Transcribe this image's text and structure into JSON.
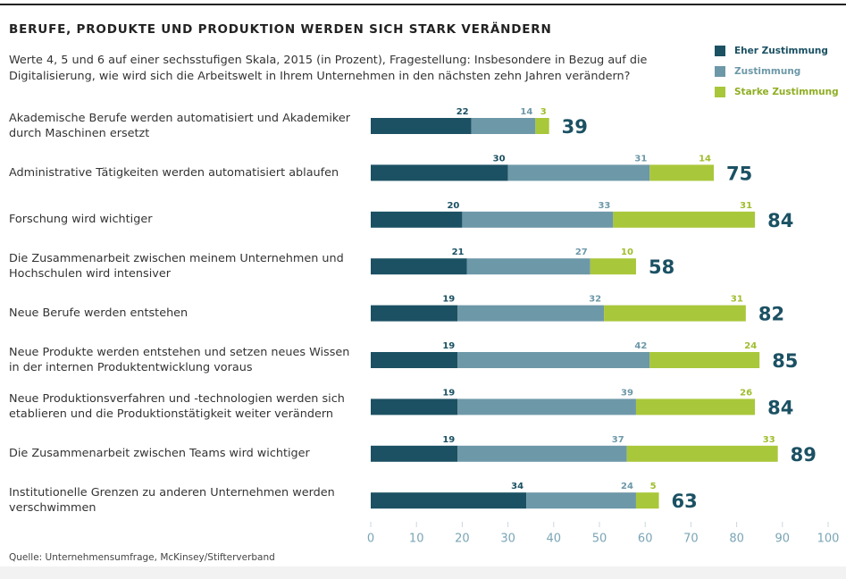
{
  "chart_data": {
    "type": "stacked-bar-horizontal",
    "title": "BERUFE, PRODUKTE UND PRODUKTION WERDEN SICH STARK VERÄNDERN",
    "subtitle": "Werte 4, 5 und 6 auf einer sechsstufigen Skala, 2015 (in Prozent), Fragestellung: Insbesondere in Bezug auf die Digitalisierung, wie wird sich die Arbeitswelt in Ihrem Unternehmen in den nächsten zehn Jahren verändern?",
    "source": "Quelle: Unternehmensumfrage, McKinsey/Stifterverband",
    "categories": [
      "Akademische Berufe werden automatisiert und Akademiker durch Maschinen ersetzt",
      "Administrative Tätigkeiten werden automatisiert ablaufen",
      "Forschung wird wichtiger",
      "Die Zusammenarbeit zwischen meinem Unternehmen und Hochschulen wird intensiver",
      "Neue Berufe werden entstehen",
      "Neue Produkte werden entstehen und setzen neues Wissen in der internen Produktentwicklung voraus",
      "Neue Produktionsverfahren und -technologien werden sich etablieren und die Produktionstätigkeit weiter verändern",
      "Die Zusammenarbeit zwischen Teams wird wichtiger",
      "Institutionelle Grenzen zu anderen Unternehmen werden verschwimmen"
    ],
    "series": [
      {
        "name": "Eher Zustimmung",
        "color": "#1b5163",
        "values": [
          22,
          30,
          20,
          21,
          19,
          19,
          19,
          19,
          34
        ]
      },
      {
        "name": "Zustimmung",
        "color": "#6d98a8",
        "values": [
          14,
          31,
          33,
          27,
          32,
          42,
          39,
          37,
          24
        ]
      },
      {
        "name": "Starke Zustimmung",
        "color": "#a9c73a",
        "values": [
          3,
          14,
          31,
          10,
          31,
          24,
          26,
          33,
          5
        ]
      }
    ],
    "totals": [
      39,
      75,
      84,
      58,
      82,
      85,
      84,
      89,
      63
    ],
    "xlim": [
      0,
      100
    ],
    "xticks": [
      0,
      10,
      20,
      30,
      40,
      50,
      60,
      70,
      80,
      90,
      100
    ],
    "legend": "top-right"
  }
}
